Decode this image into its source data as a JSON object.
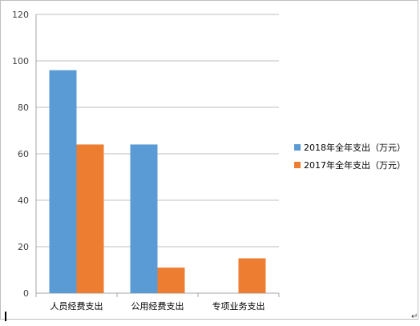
{
  "chart_data": {
    "type": "bar",
    "categories": [
      "人员经费支出",
      "公用经费支出",
      "专项业务支出"
    ],
    "series": [
      {
        "name": "2018年全年支出（万元）",
        "values": [
          96,
          64,
          0
        ],
        "color": "#5b9bd5"
      },
      {
        "name": "2017年全年支出（万元）",
        "values": [
          64,
          11,
          15
        ],
        "color": "#ed7d31"
      }
    ],
    "ylim": [
      0,
      120
    ],
    "yticks": [
      0,
      20,
      40,
      60,
      80,
      100,
      120
    ],
    "grid": true,
    "legend_position": "right"
  },
  "document": {
    "return_mark": "↵"
  }
}
